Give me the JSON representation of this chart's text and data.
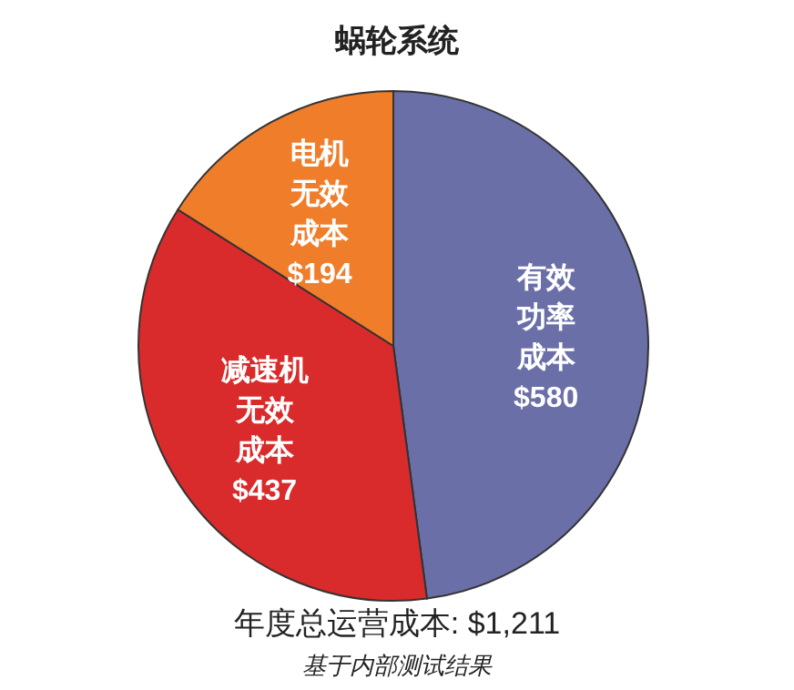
{
  "chart_data": {
    "type": "pie",
    "title": "蜗轮系统",
    "categories": [
      "有效功率成本",
      "减速机无效成本",
      "电机无效成本"
    ],
    "values": [
      580,
      437,
      194
    ],
    "value_labels": [
      "$580",
      "$437",
      "$194"
    ],
    "colors": [
      "#6a6fa8",
      "#d92b2b",
      "#ef7d2a"
    ],
    "annotations": [
      "年度总运营成本: $1,211",
      "基于内部测试结果"
    ]
  }
}
